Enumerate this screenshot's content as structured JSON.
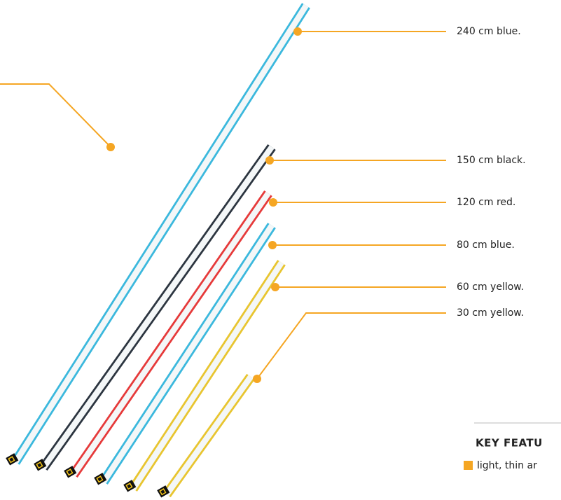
{
  "callouts": [
    "240 cm blue.",
    "150 cm black.",
    "120 cm red.",
    "80 cm blue.",
    "60 cm yellow.",
    "30 cm yellow."
  ],
  "key_features": {
    "title": "KEY FEATU",
    "items": [
      "light, thin ar"
    ]
  }
}
